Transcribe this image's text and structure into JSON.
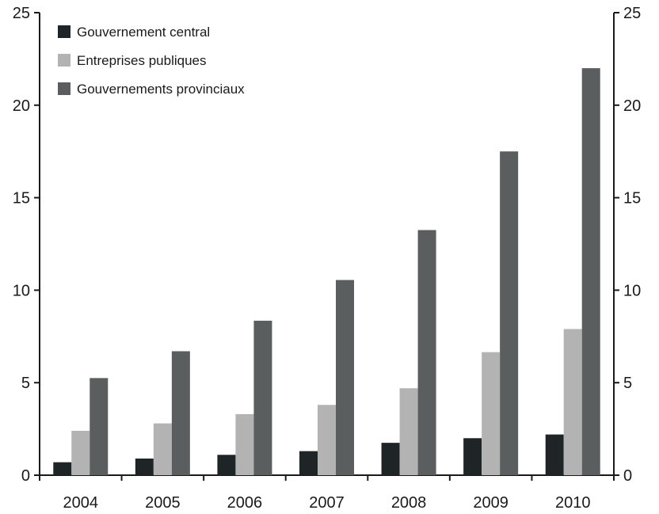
{
  "chart_data": {
    "type": "bar",
    "categories": [
      "2004",
      "2005",
      "2006",
      "2007",
      "2008",
      "2009",
      "2010"
    ],
    "series": [
      {
        "name": "Gouvernement central",
        "color": "#1f2426",
        "values": [
          0.7,
          0.9,
          1.1,
          1.3,
          1.75,
          2.0,
          2.2
        ]
      },
      {
        "name": "Entreprises publiques",
        "color": "#b3b3b3",
        "values": [
          2.4,
          2.8,
          3.3,
          3.8,
          4.7,
          6.65,
          7.9
        ]
      },
      {
        "name": "Gouvernements provinciaux",
        "color": "#5b5e5e",
        "values": [
          5.25,
          6.7,
          8.35,
          10.55,
          13.25,
          17.5,
          22.0
        ]
      }
    ],
    "ylim": [
      0,
      25
    ],
    "yticks": [
      "0",
      "5",
      "10",
      "15",
      "20",
      "25"
    ],
    "y2ticks": [
      "0",
      "5",
      "10",
      "15",
      "20",
      "25"
    ],
    "legend_position": "top-left",
    "grid": false
  }
}
